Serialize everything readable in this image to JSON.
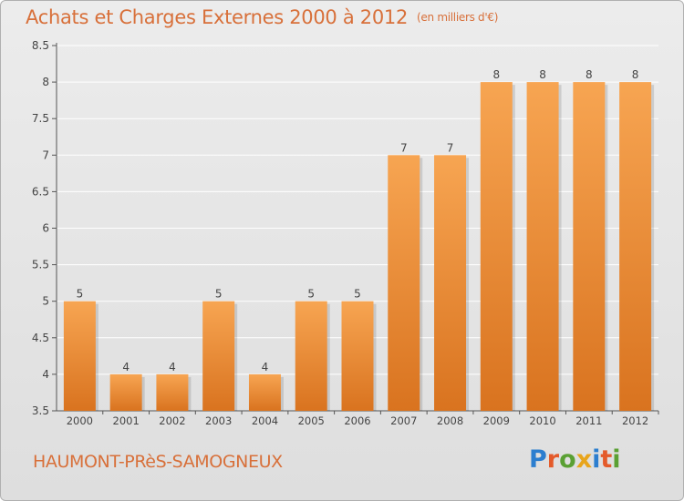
{
  "header": {
    "title": "Achats et Charges Externes 2000 à 2012",
    "unit": "(en milliers d'€)"
  },
  "footer": {
    "city": "HAUMONT-PRèS-SAMOGNEUX",
    "logo": "Proxiti"
  },
  "colors": {
    "accent": "#d8703a",
    "bar_top": "#f7a552",
    "bar_bottom": "#d9731f",
    "background": "#e6e6e6",
    "grid": "#ffffff",
    "logo_letters": [
      "#2c7ecf",
      "#e45a2a",
      "#5aa033",
      "#e8a51c",
      "#2c7ecf",
      "#e45a2a",
      "#5aa033"
    ]
  },
  "chart_data": {
    "type": "bar",
    "title": "Achats et Charges Externes 2000 à 2012",
    "subtitle": "(en milliers d'€)",
    "xlabel": "",
    "ylabel": "",
    "categories": [
      "2000",
      "2001",
      "2002",
      "2003",
      "2004",
      "2005",
      "2006",
      "2007",
      "2008",
      "2009",
      "2010",
      "2011",
      "2012"
    ],
    "values": [
      5,
      4,
      4,
      5,
      4,
      5,
      5,
      7,
      7,
      8,
      8,
      8,
      8
    ],
    "data_labels": [
      "5",
      "4",
      "4",
      "5",
      "4",
      "5",
      "5",
      "7",
      "7",
      "8",
      "8",
      "8",
      "8"
    ],
    "ylim": [
      3.5,
      8.5
    ],
    "yticks": [
      "3.5",
      "4",
      "4.5",
      "5",
      "5.5",
      "6",
      "6.5",
      "7",
      "7.5",
      "8",
      "8.5"
    ],
    "grid": true,
    "legend": "none"
  }
}
